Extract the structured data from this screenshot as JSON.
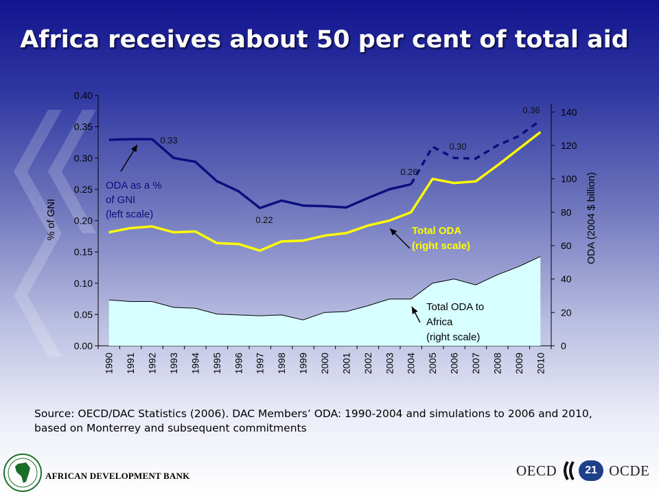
{
  "slide": {
    "title": "Africa receives about 50 per cent of total aid",
    "source": "Source: OECD/DAC Statistics (2006). DAC Members’ ODA: 1990-2004 and simulations to 2006 and 2010, based on Monterrey and subsequent commitments",
    "footer_left": "AFRICAN DEVELOPMENT BANK",
    "footer_right_left": "OECD",
    "footer_right_right": "OCDE",
    "page_number": "21"
  },
  "chart_data": {
    "type": "line",
    "categories": [
      "1990",
      "1991",
      "1992",
      "1993",
      "1994",
      "1995",
      "1996",
      "1997",
      "1998",
      "1999",
      "2000",
      "2001",
      "2002",
      "2003",
      "2004",
      "2005",
      "2006",
      "2007",
      "2008",
      "2009",
      "2010"
    ],
    "ylabel_left": "% of GNI",
    "ylabel_right": "ODA (2004 $ billion)",
    "ylim_left": [
      0,
      0.4
    ],
    "ylim_right": [
      0,
      150
    ],
    "left_ticks": [
      "0.00",
      "0.05",
      "0.10",
      "0.15",
      "0.20",
      "0.25",
      "0.30",
      "0.35",
      "0.40"
    ],
    "right_ticks": [
      "0",
      "20",
      "40",
      "60",
      "80",
      "100",
      "120",
      "140"
    ],
    "series": [
      {
        "axis": "left",
        "color": "#0b0f7e",
        "values": [
          0.329,
          0.33,
          0.33,
          0.3,
          0.294,
          0.263,
          0.247,
          0.22,
          0.232,
          0.224,
          0.223,
          0.221,
          0.236,
          0.25,
          0.258,
          null,
          null,
          null,
          null,
          null,
          null
        ],
        "projected": [
          null,
          null,
          null,
          null,
          null,
          null,
          null,
          null,
          null,
          null,
          null,
          null,
          null,
          null,
          0.258,
          0.318,
          0.3,
          0.299,
          0.32,
          0.335,
          0.36
        ]
      },
      {
        "axis": "right",
        "color": "#ffff00",
        "values": [
          68,
          70.5,
          71.5,
          68,
          68.5,
          61.5,
          61,
          57,
          62.5,
          63,
          66,
          67.5,
          72,
          75,
          80,
          100,
          97.5,
          98.5,
          108,
          118,
          128
        ]
      },
      {
        "axis": "right",
        "color": "#000000",
        "fill": "#d8ffff",
        "values": [
          27.5,
          26.5,
          26.5,
          23,
          22.5,
          19,
          18.5,
          18,
          18.5,
          15.5,
          20,
          20.5,
          24,
          28,
          28,
          37.5,
          40,
          36.5,
          42.5,
          47.5,
          53.5
        ]
      }
    ],
    "data_labels": [
      "0.33",
      "0.22",
      "0.26",
      "0.30",
      "0.36"
    ],
    "annotations": {
      "gni": [
        "ODA as a %",
        "of GNI",
        "(left scale)"
      ],
      "total": [
        "Total ODA",
        "(right scale)"
      ],
      "africa": [
        "Total ODA to",
        "Africa",
        "(right scale)"
      ]
    }
  }
}
